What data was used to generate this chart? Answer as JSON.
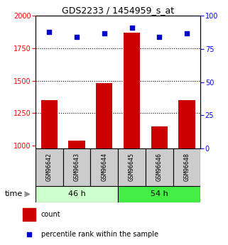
{
  "title": "GDS2233 / 1454959_s_at",
  "samples": [
    "GSM96642",
    "GSM96643",
    "GSM96644",
    "GSM96645",
    "GSM96646",
    "GSM96648"
  ],
  "counts": [
    1350,
    1040,
    1480,
    1870,
    1150,
    1350
  ],
  "percentiles": [
    88,
    84,
    87,
    91,
    84,
    87
  ],
  "groups": [
    {
      "label": "46 h",
      "indices": [
        0,
        1,
        2
      ],
      "color_light": "#ccffcc",
      "color_dark": "#44dd44"
    },
    {
      "label": "54 h",
      "indices": [
        3,
        4,
        5
      ],
      "color_light": "#44dd44",
      "color_dark": "#22cc22"
    }
  ],
  "ylim_left": [
    980,
    2000
  ],
  "ylim_right": [
    0,
    100
  ],
  "yticks_left": [
    1000,
    1250,
    1500,
    1750,
    2000
  ],
  "yticks_right": [
    0,
    25,
    50,
    75,
    100
  ],
  "bar_color": "#cc0000",
  "scatter_color": "#0000cc",
  "bar_width": 0.6,
  "plot_bg": "#ffffff",
  "label_count": "count",
  "label_percentile": "percentile rank within the sample",
  "title_fontsize": 9,
  "tick_fontsize": 7,
  "sample_fontsize": 6,
  "group_fontsize": 8,
  "legend_fontsize": 7,
  "dotted_lines": [
    1250,
    1500,
    1750
  ]
}
